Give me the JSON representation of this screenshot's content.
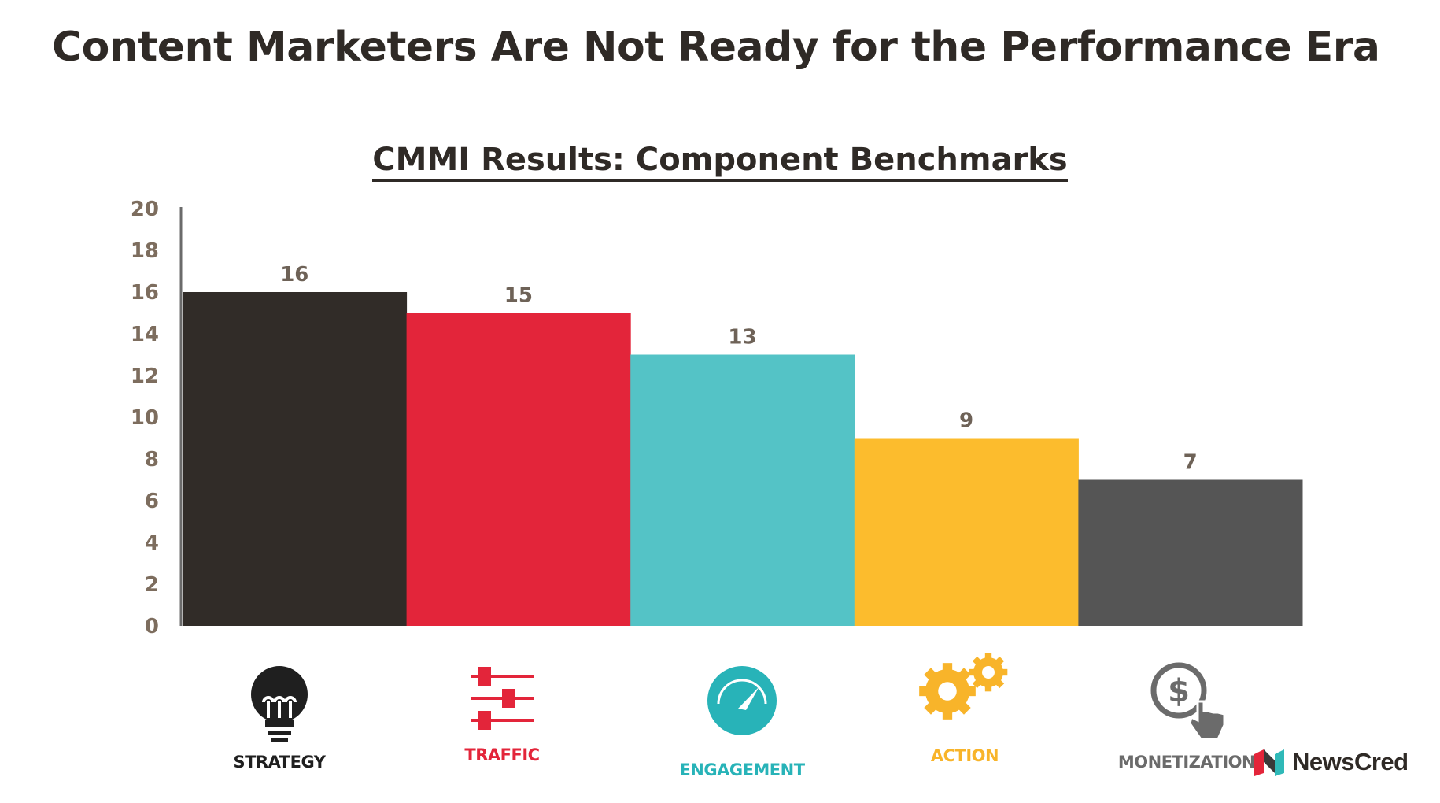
{
  "title": "Content Marketers Are Not Ready for the Performance Era",
  "brand": {
    "name": "NewsCred"
  },
  "chart_data": {
    "type": "bar",
    "title": "CMMI Results: Component Benchmarks",
    "xlabel": "",
    "ylabel": "",
    "ylim": [
      0,
      20
    ],
    "yticks": [
      0,
      2,
      4,
      6,
      8,
      10,
      12,
      14,
      16,
      18,
      20
    ],
    "grid": false,
    "categories": [
      "STRATEGY",
      "TRAFFIC",
      "ENGAGEMENT",
      "ACTION",
      "MONETIZATION"
    ],
    "values": [
      16,
      15,
      13,
      9,
      7
    ],
    "value_labels": [
      "16",
      "15",
      "13",
      "9",
      "7"
    ],
    "colors": [
      "#312c28",
      "#e3253a",
      "#54c3c6",
      "#fcbc2d",
      "#555555"
    ],
    "label_colors": [
      "#1f1f1f",
      "#e3253a",
      "#28b3b8",
      "#f8b42a",
      "#6b6b6b"
    ],
    "icons": [
      "lightbulb-icon",
      "sliders-icon",
      "gauge-icon",
      "gears-icon",
      "dollar-click-icon"
    ]
  }
}
